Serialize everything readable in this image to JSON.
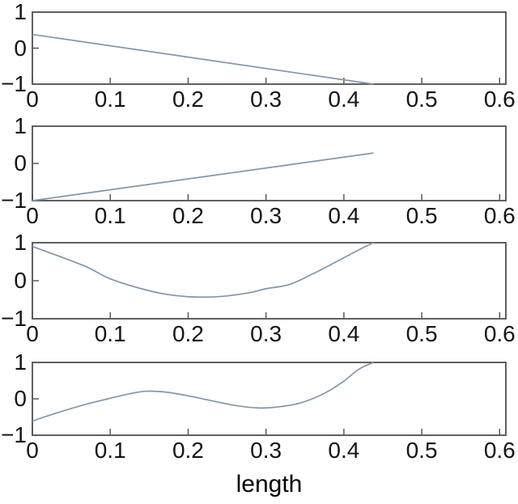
{
  "figure": {
    "background": "#ffffff",
    "axis_color": "#4f4f4f",
    "line_color": "#8296aa",
    "text_color": "#141414",
    "xlabel": "length"
  },
  "chart_data": [
    {
      "type": "line",
      "title": "",
      "xlabel": "",
      "ylabel": "",
      "xlim": [
        0,
        0.608
      ],
      "ylim": [
        -1,
        1
      ],
      "grid": false,
      "legend": null,
      "x_ticks": [
        0,
        0.1,
        0.2,
        0.3,
        0.4,
        0.5,
        0.6
      ],
      "x_tick_labels": [
        "0",
        "0.1",
        "0.2",
        "0.3",
        "0.4",
        "0.5",
        "0.6"
      ],
      "y_ticks": [
        1,
        0,
        -1
      ],
      "y_tick_labels": [
        "1",
        "0",
        "−1"
      ],
      "x": [
        0,
        0.438
      ],
      "y": [
        0.38,
        -1.0
      ]
    },
    {
      "type": "line",
      "title": "",
      "xlabel": "",
      "ylabel": "",
      "xlim": [
        0,
        0.608
      ],
      "ylim": [
        -1,
        1
      ],
      "grid": false,
      "legend": null,
      "x_ticks": [
        0,
        0.1,
        0.2,
        0.3,
        0.4,
        0.5,
        0.6
      ],
      "x_tick_labels": [
        "0",
        "0.1",
        "0.2",
        "0.3",
        "0.4",
        "0.5",
        "0.6"
      ],
      "y_ticks": [
        1,
        0,
        -1
      ],
      "y_tick_labels": [
        "1",
        "0",
        "−1"
      ],
      "x": [
        0,
        0.438
      ],
      "y": [
        -1.0,
        0.28
      ]
    },
    {
      "type": "line",
      "title": "",
      "xlabel": "",
      "ylabel": "",
      "xlim": [
        0,
        0.608
      ],
      "ylim": [
        -1,
        1
      ],
      "grid": false,
      "legend": null,
      "x_ticks": [
        0,
        0.1,
        0.2,
        0.3,
        0.4,
        0.5,
        0.6
      ],
      "x_tick_labels": [
        "0",
        "0.1",
        "0.2",
        "0.3",
        "0.4",
        "0.5",
        "0.6"
      ],
      "y_ticks": [
        1,
        0,
        -1
      ],
      "y_tick_labels": [
        "1",
        "0",
        "−1"
      ],
      "x": [
        0,
        0.035,
        0.07,
        0.1,
        0.14,
        0.17,
        0.2,
        0.225,
        0.25,
        0.28,
        0.3,
        0.33,
        0.36,
        0.395,
        0.42,
        0.438
      ],
      "y": [
        0.9,
        0.64,
        0.36,
        0.05,
        -0.21,
        -0.35,
        -0.42,
        -0.43,
        -0.4,
        -0.31,
        -0.21,
        -0.1,
        0.18,
        0.55,
        0.82,
        1.0
      ]
    },
    {
      "type": "line",
      "title": "",
      "xlabel": "length",
      "ylabel": "",
      "xlim": [
        0,
        0.608
      ],
      "ylim": [
        -1,
        1
      ],
      "grid": false,
      "legend": null,
      "x_ticks": [
        0,
        0.1,
        0.2,
        0.3,
        0.4,
        0.5,
        0.6
      ],
      "x_tick_labels": [
        "0",
        "0.1",
        "0.2",
        "0.3",
        "0.4",
        "0.5",
        "0.6"
      ],
      "y_ticks": [
        1,
        0,
        -1
      ],
      "y_tick_labels": [
        "1",
        "0",
        "−1"
      ],
      "x": [
        0,
        0.028,
        0.062,
        0.097,
        0.125,
        0.147,
        0.173,
        0.203,
        0.236,
        0.263,
        0.29,
        0.312,
        0.343,
        0.374,
        0.399,
        0.419,
        0.438
      ],
      "y": [
        -0.61,
        -0.41,
        -0.19,
        0.0,
        0.14,
        0.21,
        0.18,
        0.07,
        -0.08,
        -0.19,
        -0.25,
        -0.23,
        -0.12,
        0.14,
        0.47,
        0.81,
        1.0
      ]
    }
  ]
}
